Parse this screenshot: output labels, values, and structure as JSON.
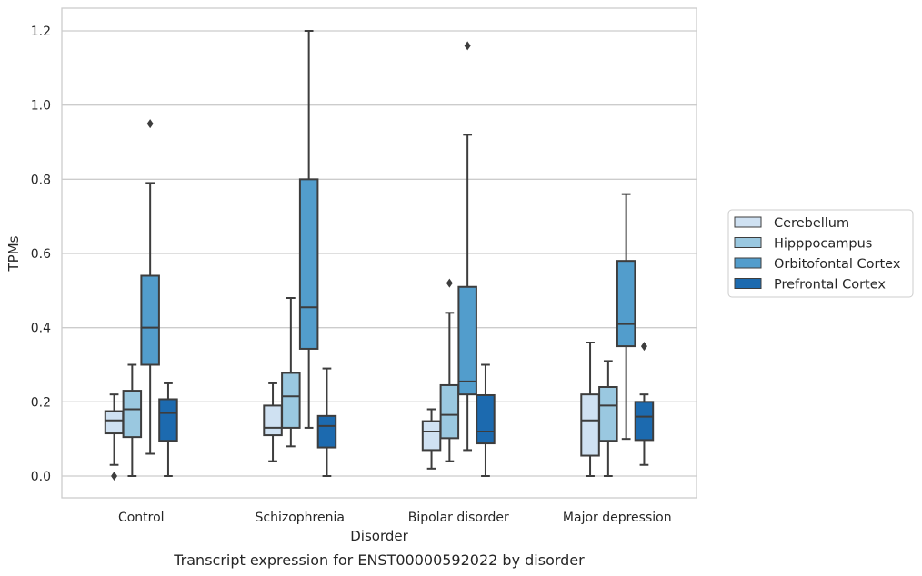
{
  "chart_data": {
    "type": "box",
    "caption": "Transcript expression for ENST00000592022 by disorder",
    "xlabel": "Disorder",
    "ylabel": "TPMs",
    "ylim": [
      -0.06,
      1.26
    ],
    "yticks": [
      "0.0",
      "0.2",
      "0.4",
      "0.6",
      "0.8",
      "1.0",
      "1.2"
    ],
    "grid": true,
    "legend_position": "right",
    "categories": [
      "Control",
      "Schizophrenia",
      "Bipolar disorder",
      "Major depression"
    ],
    "series": [
      {
        "name": "Cerebellum",
        "color": "#cfe1f2",
        "boxes": [
          {
            "whislo": 0.03,
            "q1": 0.115,
            "med": 0.15,
            "q3": 0.175,
            "whishi": 0.22,
            "fliers": [
              0.0
            ]
          },
          {
            "whislo": 0.04,
            "q1": 0.11,
            "med": 0.13,
            "q3": 0.19,
            "whishi": 0.25,
            "fliers": []
          },
          {
            "whislo": 0.02,
            "q1": 0.07,
            "med": 0.12,
            "q3": 0.148,
            "whishi": 0.18,
            "fliers": []
          },
          {
            "whislo": 0.0,
            "q1": 0.055,
            "med": 0.15,
            "q3": 0.22,
            "whishi": 0.36,
            "fliers": []
          }
        ]
      },
      {
        "name": "Hipppocampus",
        "color": "#9ac8e0",
        "boxes": [
          {
            "whislo": 0.0,
            "q1": 0.105,
            "med": 0.18,
            "q3": 0.23,
            "whishi": 0.3,
            "fliers": []
          },
          {
            "whislo": 0.08,
            "q1": 0.13,
            "med": 0.215,
            "q3": 0.278,
            "whishi": 0.48,
            "fliers": []
          },
          {
            "whislo": 0.04,
            "q1": 0.102,
            "med": 0.165,
            "q3": 0.245,
            "whishi": 0.44,
            "fliers": [
              0.52
            ]
          },
          {
            "whislo": 0.0,
            "q1": 0.095,
            "med": 0.19,
            "q3": 0.24,
            "whishi": 0.31,
            "fliers": []
          }
        ]
      },
      {
        "name": "Orbitofontal Cortex",
        "color": "#529dcc",
        "boxes": [
          {
            "whislo": 0.06,
            "q1": 0.3,
            "med": 0.4,
            "q3": 0.54,
            "whishi": 0.79,
            "fliers": [
              0.95
            ]
          },
          {
            "whislo": 0.13,
            "q1": 0.343,
            "med": 0.455,
            "q3": 0.8,
            "whishi": 1.2,
            "fliers": []
          },
          {
            "whislo": 0.07,
            "q1": 0.22,
            "med": 0.255,
            "q3": 0.51,
            "whishi": 0.92,
            "fliers": [
              1.16
            ]
          },
          {
            "whislo": 0.1,
            "q1": 0.35,
            "med": 0.41,
            "q3": 0.58,
            "whishi": 0.76,
            "fliers": []
          }
        ]
      },
      {
        "name": "Prefrontal Cortex",
        "color": "#1c6aaf",
        "boxes": [
          {
            "whislo": 0.0,
            "q1": 0.095,
            "med": 0.17,
            "q3": 0.207,
            "whishi": 0.25,
            "fliers": []
          },
          {
            "whislo": 0.0,
            "q1": 0.077,
            "med": 0.135,
            "q3": 0.162,
            "whishi": 0.29,
            "fliers": []
          },
          {
            "whislo": 0.0,
            "q1": 0.088,
            "med": 0.12,
            "q3": 0.218,
            "whishi": 0.3,
            "fliers": []
          },
          {
            "whislo": 0.03,
            "q1": 0.097,
            "med": 0.16,
            "q3": 0.2,
            "whishi": 0.22,
            "fliers": [
              0.35
            ]
          }
        ]
      }
    ]
  }
}
